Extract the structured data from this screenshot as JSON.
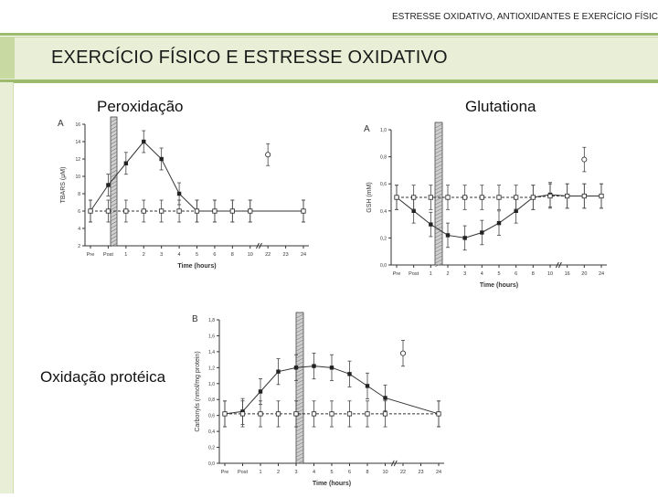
{
  "header": {
    "running_title": "ESTRESSE OXIDATIVO, ANTIOXIDANTES E EXERCÍCIO FÍSIC"
  },
  "slide": {
    "title": "EXERCÍCIO FÍSICO E ESTRESSE OXIDATIVO",
    "labels": {
      "peroxidation": "Peroxidação",
      "glutathione": "Glutationa",
      "protein_oxidation": "Oxidação protéica"
    }
  },
  "chart_data": [
    {
      "type": "line",
      "panel": "A",
      "ylabel": "TBARS (μM)",
      "xlabel": "Time (hours)",
      "ylim": [
        2,
        16
      ],
      "yticks": [
        "2",
        "4",
        "6",
        "8",
        "10",
        "12",
        "14",
        "16"
      ],
      "x_ticks": [
        "Pre",
        "Post",
        "1",
        "2",
        "3",
        "4",
        "5",
        "6",
        "8",
        "10",
        "22",
        "23",
        "24"
      ],
      "series": [
        {
          "marker": "filled-square",
          "line": "solid",
          "values": [
            6,
            9,
            11.5,
            14,
            12,
            8,
            6,
            6,
            6,
            6,
            null,
            null,
            6
          ]
        },
        {
          "marker": "open-square",
          "line": "dashed",
          "values": [
            6,
            6,
            6,
            6,
            6,
            6,
            6,
            6,
            6,
            6,
            null,
            null,
            6
          ]
        },
        {
          "marker": "open-circle",
          "line": "none",
          "values": [
            null,
            null,
            null,
            null,
            null,
            null,
            null,
            null,
            null,
            null,
            12.5,
            null,
            null
          ]
        }
      ]
    },
    {
      "type": "line",
      "panel": "A",
      "ylabel": "GSH (mM)",
      "xlabel": "Time (hours)",
      "ylim": [
        0,
        1.0
      ],
      "yticks": [
        "0,0",
        "0,2",
        "0,4",
        "0,6",
        "0,8",
        "1,0"
      ],
      "x_ticks": [
        "Pre",
        "Post",
        "1",
        "2",
        "3",
        "4",
        "5",
        "6",
        "8",
        "10",
        "16",
        "20",
        "24"
      ],
      "series": [
        {
          "marker": "filled-square",
          "line": "solid",
          "values": [
            0.5,
            0.4,
            0.3,
            0.22,
            0.2,
            0.24,
            0.31,
            0.4,
            0.5,
            0.52,
            0.51,
            0.51,
            0.51
          ]
        },
        {
          "marker": "open-square",
          "line": "dashed",
          "values": [
            0.5,
            0.5,
            0.5,
            0.5,
            0.5,
            0.5,
            0.5,
            0.5,
            0.5,
            0.51,
            0.51,
            0.51,
            0.51
          ]
        },
        {
          "marker": "open-circle",
          "line": "none",
          "values": [
            null,
            null,
            null,
            null,
            null,
            null,
            null,
            null,
            null,
            null,
            null,
            0.78,
            null
          ]
        }
      ]
    },
    {
      "type": "line",
      "panel": "B",
      "ylabel": "Carbonyls (nmol/mg protein)",
      "xlabel": "Time (hours)",
      "ylim": [
        0,
        1.8
      ],
      "yticks": [
        "0,0",
        "0,2",
        "0,4",
        "0,6",
        "0,8",
        "1,0",
        "1,2",
        "1,4",
        "1,6",
        "1,8"
      ],
      "x_ticks": [
        "Pre",
        "Post",
        "1",
        "2",
        "3",
        "4",
        "5",
        "6",
        "8",
        "10",
        "22",
        "23",
        "24"
      ],
      "series": [
        {
          "marker": "filled-square",
          "line": "solid",
          "values": [
            0.62,
            0.65,
            0.9,
            1.15,
            1.2,
            1.22,
            1.2,
            1.12,
            0.97,
            0.82,
            null,
            null,
            0.62
          ]
        },
        {
          "marker": "open-square",
          "line": "dashed",
          "values": [
            0.62,
            0.62,
            0.62,
            0.62,
            0.62,
            0.62,
            0.62,
            0.62,
            0.62,
            0.62,
            null,
            null,
            0.62
          ]
        },
        {
          "marker": "open-circle",
          "line": "none",
          "values": [
            null,
            null,
            null,
            null,
            null,
            null,
            null,
            null,
            null,
            null,
            1.38,
            null,
            null
          ]
        }
      ]
    }
  ]
}
